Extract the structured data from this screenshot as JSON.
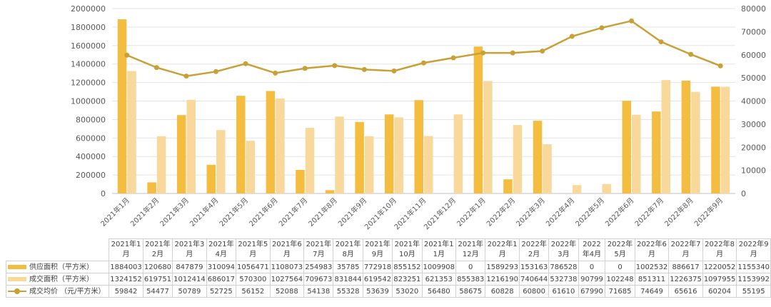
{
  "chart_data": {
    "type": "bar",
    "categories": [
      "2021年1月",
      "2021年2月",
      "2021年3月",
      "2021年4月",
      "2021年5月",
      "2021年6月",
      "2021年7月",
      "2021年8月",
      "2021年9月",
      "2021年10月",
      "2021年11月",
      "2021年12月",
      "2022年1月",
      "2022年2月",
      "2022年3月",
      "2022年4月",
      "2022年5月",
      "2022年6月",
      "2022年7月",
      "2022年8月",
      "2022年9月"
    ],
    "y_left": {
      "min": 0,
      "max": 2000000,
      "step": 200000,
      "ticks": [
        "0",
        "200000",
        "400000",
        "600000",
        "800000",
        "1000000",
        "1200000",
        "1400000",
        "1600000",
        "1800000",
        "2000000"
      ]
    },
    "y_right": {
      "min": 0,
      "max": 80000,
      "step": 10000,
      "ticks": [
        "0",
        "10000",
        "20000",
        "30000",
        "40000",
        "50000",
        "60000",
        "70000",
        "80000"
      ]
    },
    "grid": true,
    "legend": "bottom-left (data table)",
    "series": [
      {
        "name": "供应面积（平方米）",
        "type": "bar",
        "axis": "left",
        "color": "#f4bd3f",
        "values": [
          1884003,
          120680,
          847879,
          310094,
          1056471,
          1108073,
          254983,
          35785,
          772918,
          855152,
          1009908,
          0,
          1589293,
          153163,
          786528,
          0,
          0,
          1002532,
          886617,
          1220052,
          1155340
        ]
      },
      {
        "name": "成交面积（平方米）",
        "type": "bar",
        "axis": "left",
        "color": "#f8d89b",
        "values": [
          1324152,
          619751,
          1012414,
          686017,
          570300,
          1027564,
          709673,
          831844,
          619542,
          823251,
          621353,
          855383,
          1216190,
          740644,
          532738,
          90799,
          102248,
          851311,
          1226375,
          1097955,
          1153992
        ]
      },
      {
        "name": "成交均价 （元/平方米）",
        "type": "line",
        "axis": "right",
        "color": "#c9a035",
        "values": [
          59842,
          54477,
          50789,
          52725,
          56152,
          52088,
          54138,
          55328,
          53639,
          53020,
          56480,
          58675,
          60828,
          60800,
          61610,
          67990,
          71685,
          74649,
          65616,
          60204,
          55195
        ]
      }
    ]
  },
  "table": {
    "headers": [
      "2021年1月",
      "2021年2月",
      "2021年3月",
      "2021年4月",
      "2021年5月",
      "2021年6月",
      "2021年7月",
      "2021年8月",
      "2021年9月",
      "2021年10月",
      "2021年11月",
      "2021年12月",
      "2022年1月",
      "2022年2月",
      "2022年3月",
      "2022年4月",
      "2022年5月",
      "2022年6月",
      "2022年7月",
      "2022年8月",
      "2022年9月"
    ],
    "rows": [
      {
        "label": "供应面积（平方米）",
        "key": "bar",
        "color": "#f4bd3f",
        "cells": [
          "1884003",
          "120680",
          "847879",
          "310094",
          "1056471",
          "1108073",
          "254983",
          "35785",
          "772918",
          "855152",
          "1009908",
          "0",
          "1589293",
          "153163",
          "786528",
          "0",
          "0",
          "1002532",
          "886617",
          "1220052",
          "1155340"
        ]
      },
      {
        "label": "成交面积（平方米）",
        "key": "bar",
        "color": "#f8d89b",
        "cells": [
          "1324152",
          "619751",
          "1012414",
          "686017",
          "570300",
          "1027564",
          "709673",
          "831844",
          "619542",
          "823251",
          "621353",
          "855383",
          "1216190",
          "740644",
          "532738",
          "90799",
          "102248",
          "851311",
          "1226375",
          "1097955",
          "1153992"
        ]
      },
      {
        "label": "成交均价 （元/平方米）",
        "key": "line",
        "color": "#c9a035",
        "cells": [
          "59842",
          "54477",
          "50789",
          "52725",
          "56152",
          "52088",
          "54138",
          "55328",
          "53639",
          "53020",
          "56480",
          "58675",
          "60828",
          "60800",
          "61610",
          "67990",
          "71685",
          "74649",
          "65616",
          "60204",
          "55195"
        ]
      }
    ]
  }
}
